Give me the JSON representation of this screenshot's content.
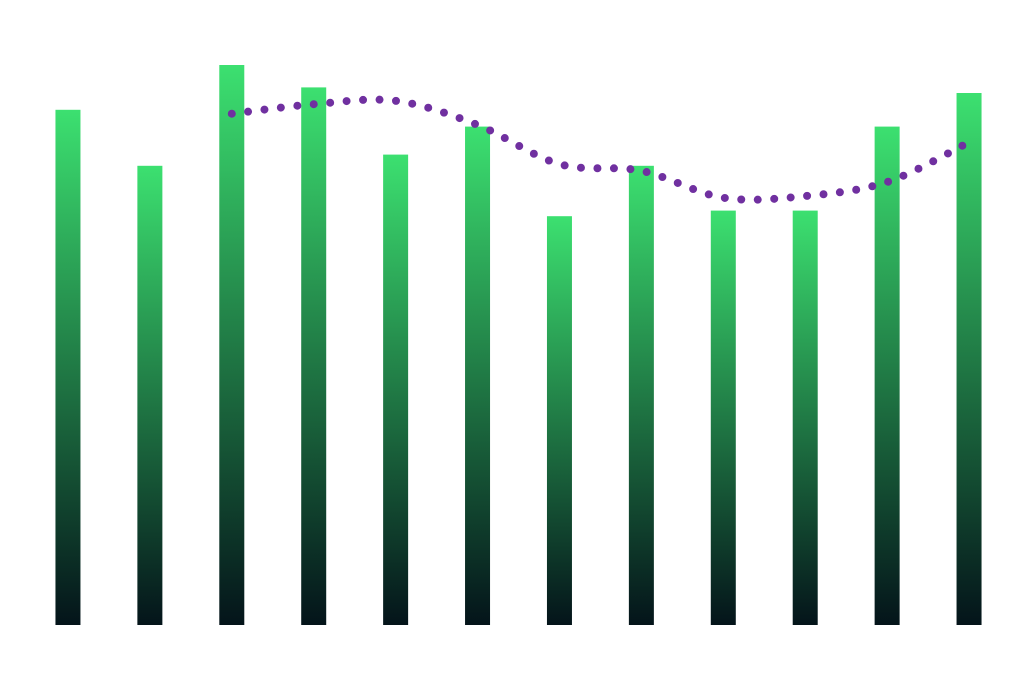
{
  "chart_data": {
    "type": "bar",
    "categories": [
      null,
      null,
      null,
      null,
      null,
      null,
      null,
      null,
      null,
      null,
      null,
      null
    ],
    "series": [
      {
        "type": "bar",
        "color": [
          "#3ce070",
          "#04141a"
        ],
        "values": [
          92,
          82,
          100,
          96,
          84,
          89,
          73,
          82,
          74,
          74,
          89,
          95
        ]
      },
      {
        "type": "line",
        "color": "#7030a0",
        "values": [
          null,
          null,
          91.3,
          93,
          93.6,
          89.3,
          82.3,
          81.1,
          76.3,
          76.6,
          79.1,
          86.2
        ]
      }
    ],
    "ylim": [
      0,
      100
    ]
  }
}
